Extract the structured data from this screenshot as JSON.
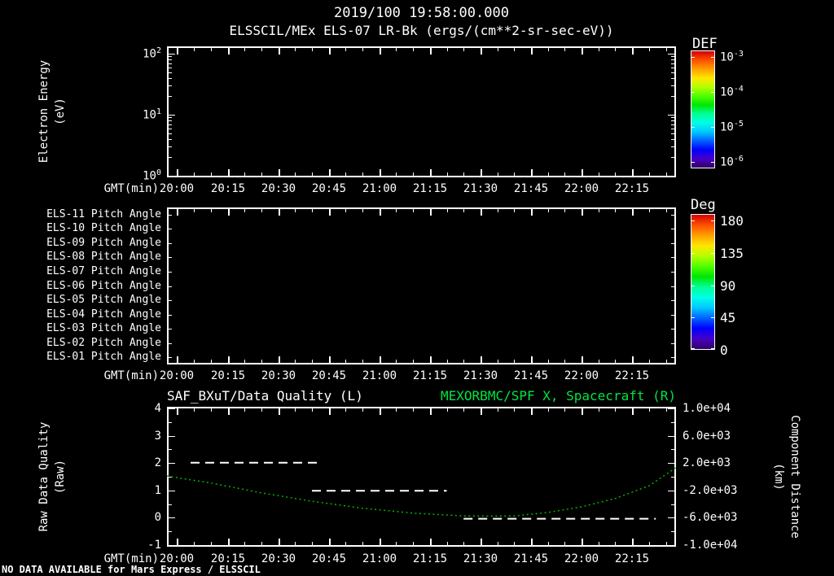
{
  "colors": {
    "background": "#000000",
    "foreground": "#ffffff",
    "right_title_green": "#00e541",
    "spacecraft_curve_green": "#00b400",
    "quality_line_white": "#ffffff"
  },
  "colorbar_gradient": [
    "#d40000",
    "#ff5000",
    "#ffa000",
    "#ffe600",
    "#b4ff00",
    "#50ff00",
    "#00e600",
    "#00ff96",
    "#00ffe6",
    "#00c8ff",
    "#0064ff",
    "#0000ff",
    "#4600c8",
    "#320064"
  ],
  "header": {
    "datetime": "2019/100 19:58:00.000",
    "instrument": "ELSSCIL/MEx ELS-07 LR-Bk (ergs/(cm**2-sr-sec-eV))"
  },
  "xaxis": {
    "label": "GMT(min)",
    "ticks": [
      "20:00",
      "20:15",
      "20:30",
      "20:45",
      "21:00",
      "21:15",
      "21:30",
      "21:45",
      "22:00",
      "22:15"
    ]
  },
  "panel1": {
    "ylabel_lines": [
      "Electron Energy",
      "(eV)"
    ],
    "yticks": [
      {
        "b": "10",
        "e": "2"
      },
      {
        "b": "10",
        "e": "1"
      },
      {
        "b": "10",
        "e": "0"
      }
    ],
    "colorbar": {
      "title": "DEF",
      "ticks": [
        {
          "b": "10",
          "e": "-3"
        },
        {
          "b": "10",
          "e": "-4"
        },
        {
          "b": "10",
          "e": "-5"
        },
        {
          "b": "10",
          "e": "-6"
        }
      ]
    }
  },
  "panel2": {
    "row_labels": [
      "ELS-11 Pitch Angle",
      "ELS-10 Pitch Angle",
      "ELS-09 Pitch Angle",
      "ELS-08 Pitch Angle",
      "ELS-07 Pitch Angle",
      "ELS-06 Pitch Angle",
      "ELS-05 Pitch Angle",
      "ELS-04 Pitch Angle",
      "ELS-03 Pitch Angle",
      "ELS-02 Pitch Angle",
      "ELS-01 Pitch Angle"
    ],
    "colorbar": {
      "title": "Deg",
      "ticks": [
        "180",
        "135",
        "90",
        "45",
        "0"
      ]
    }
  },
  "panel3": {
    "title_left": "SAF_BXuT/Data Quality (L)",
    "title_right": "MEXORBMC/SPF X, Spacecraft (R)",
    "ylabel_left_lines": [
      "Raw Data Quality",
      "(Raw)"
    ],
    "yticks_left": [
      "4",
      "3",
      "2",
      "1",
      "0",
      "-1"
    ],
    "ylabel_right_lines": [
      "Component Distance",
      "(km)"
    ],
    "yticks_right": [
      "1.0e+04",
      "6.0e+03",
      "2.0e+03",
      "-2.0e+03",
      "-6.0e+03",
      "-1.0e+04"
    ]
  },
  "footer": {
    "message": "NO DATA AVAILABLE for Mars Express / ELSSCIL"
  },
  "chart_data": [
    {
      "type": "heatmap",
      "title": "ELSSCIL/MEx ELS-07 LR-Bk",
      "units": "ergs/(cm**2-sr-sec-eV)",
      "xlabel": "GMT(min)",
      "x_ticks": [
        "20:00",
        "20:15",
        "20:30",
        "20:45",
        "21:00",
        "21:15",
        "21:30",
        "21:45",
        "22:00",
        "22:15"
      ],
      "ylabel": "Electron Energy (eV)",
      "y_scale": "log",
      "y_tick_values_ev": [
        1,
        10,
        100
      ],
      "colorbar": {
        "label": "DEF",
        "scale": "log",
        "tick_values": [
          0.001,
          0.0001,
          1e-05,
          1e-06
        ]
      },
      "values": [],
      "note": "panel is empty - no data plotted"
    },
    {
      "type": "heatmap",
      "categories": [
        "ELS-11 Pitch Angle",
        "ELS-10 Pitch Angle",
        "ELS-09 Pitch Angle",
        "ELS-08 Pitch Angle",
        "ELS-07 Pitch Angle",
        "ELS-06 Pitch Angle",
        "ELS-05 Pitch Angle",
        "ELS-04 Pitch Angle",
        "ELS-03 Pitch Angle",
        "ELS-02 Pitch Angle",
        "ELS-01 Pitch Angle"
      ],
      "xlabel": "GMT(min)",
      "x_ticks": [
        "20:00",
        "20:15",
        "20:30",
        "20:45",
        "21:00",
        "21:15",
        "21:30",
        "21:45",
        "22:00",
        "22:15"
      ],
      "colorbar": {
        "label": "Deg",
        "tick_values": [
          180,
          135,
          90,
          45,
          0
        ]
      },
      "values": [],
      "note": "panel is empty - no data plotted"
    },
    {
      "type": "line",
      "title_left": "SAF_BXuT/Data Quality (L)",
      "title_right": "MEXORBMC/SPF X, Spacecraft (R)",
      "xlabel": "GMT(min)",
      "x_ticks": [
        "20:00",
        "20:15",
        "20:30",
        "20:45",
        "21:00",
        "21:15",
        "21:30",
        "21:45",
        "22:00",
        "22:15"
      ],
      "x_minutes_reference": "minutes after 20:00",
      "x_domain_minutes": [
        -3,
        148
      ],
      "x_tick_minutes": [
        0,
        15,
        30,
        45,
        60,
        75,
        90,
        105,
        120,
        135
      ],
      "left_axis": {
        "label": "Raw Data Quality (Raw)",
        "range": [
          -1,
          4
        ],
        "ticks": [
          4,
          3,
          2,
          1,
          0,
          -1
        ]
      },
      "right_axis": {
        "label": "Component Distance (km)",
        "range": [
          -10000,
          10000
        ],
        "ticks": [
          10000,
          6000,
          2000,
          -2000,
          -6000,
          -10000
        ]
      },
      "legend": "off",
      "grid": "off",
      "series": [
        {
          "name": "SAF_BXuT/Data Quality",
          "axis": "left",
          "style": "dashed",
          "color": "#ffffff",
          "segments": [
            {
              "value": 2,
              "start_min": 4,
              "end_min": 43
            },
            {
              "value": 1,
              "start_min": 40,
              "end_min": 80
            },
            {
              "value": 0,
              "start_min": 85,
              "end_min": 142
            }
          ]
        },
        {
          "name": "MEXORBMC/SPF X, Spacecraft",
          "axis": "right",
          "style": "dotted",
          "color": "#00b400",
          "points_min_km": [
            [
              -3,
              100
            ],
            [
              10,
              -900
            ],
            [
              25,
              -2300
            ],
            [
              40,
              -3500
            ],
            [
              55,
              -4500
            ],
            [
              70,
              -5200
            ],
            [
              85,
              -5600
            ],
            [
              100,
              -5600
            ],
            [
              110,
              -5100
            ],
            [
              120,
              -4300
            ],
            [
              130,
              -3100
            ],
            [
              140,
              -1300
            ],
            [
              148,
              1300
            ]
          ]
        }
      ]
    }
  ]
}
